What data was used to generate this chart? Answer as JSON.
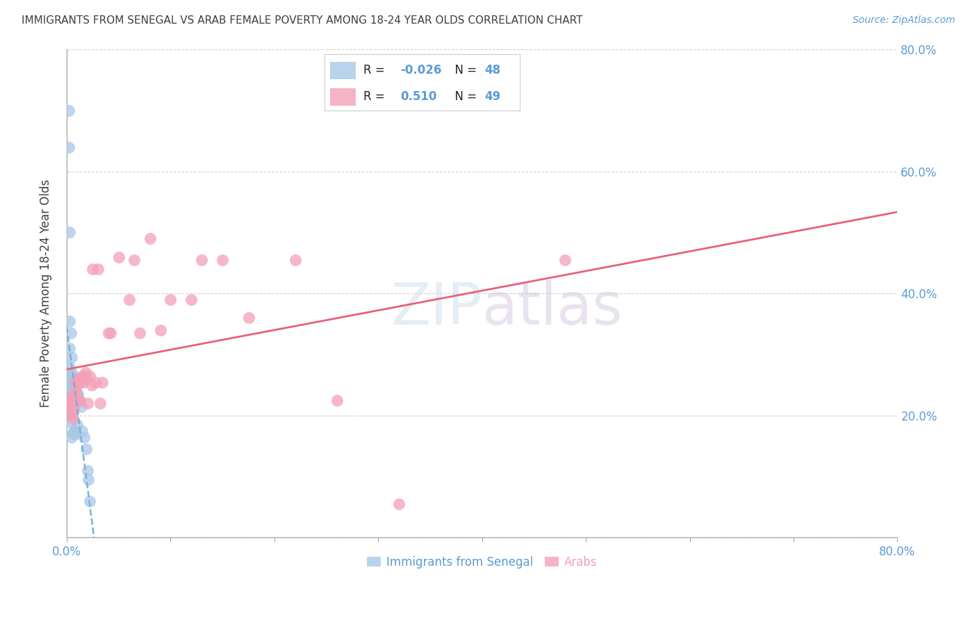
{
  "title": "IMMIGRANTS FROM SENEGAL VS ARAB FEMALE POVERTY AMONG 18-24 YEAR OLDS CORRELATION CHART",
  "source": "Source: ZipAtlas.com",
  "ylabel": "Female Poverty Among 18-24 Year Olds",
  "xlabel_senegal": "Immigrants from Senegal",
  "xlabel_arabs": "Arabs",
  "xlim": [
    0.0,
    0.8
  ],
  "ylim": [
    0.0,
    0.8
  ],
  "legend_r_senegal": "-0.026",
  "legend_n_senegal": "48",
  "legend_r_arabs": "0.510",
  "legend_n_arabs": "49",
  "senegal_color": "#a8c8e8",
  "arabs_color": "#f4a0b8",
  "trendline_senegal_color": "#7ab0d8",
  "trendline_arabs_color": "#e8607a",
  "background_color": "#ffffff",
  "grid_color": "#cccccc",
  "axis_label_color": "#5b9bd5",
  "title_color": "#404040",
  "watermark": "ZIPatlas",
  "senegal_x": [
    0.002,
    0.002,
    0.003,
    0.003,
    0.003,
    0.003,
    0.003,
    0.004,
    0.004,
    0.004,
    0.004,
    0.005,
    0.005,
    0.005,
    0.005,
    0.005,
    0.005,
    0.005,
    0.005,
    0.005,
    0.005,
    0.006,
    0.006,
    0.006,
    0.006,
    0.006,
    0.006,
    0.007,
    0.007,
    0.007,
    0.007,
    0.007,
    0.008,
    0.008,
    0.009,
    0.009,
    0.009,
    0.01,
    0.01,
    0.011,
    0.012,
    0.014,
    0.015,
    0.017,
    0.019,
    0.02,
    0.021,
    0.022
  ],
  "senegal_y": [
    0.7,
    0.64,
    0.5,
    0.355,
    0.31,
    0.28,
    0.24,
    0.335,
    0.26,
    0.23,
    0.19,
    0.295,
    0.27,
    0.26,
    0.25,
    0.24,
    0.23,
    0.22,
    0.215,
    0.205,
    0.165,
    0.265,
    0.25,
    0.235,
    0.225,
    0.21,
    0.17,
    0.25,
    0.235,
    0.225,
    0.215,
    0.175,
    0.235,
    0.175,
    0.235,
    0.22,
    0.17,
    0.235,
    0.185,
    0.235,
    0.225,
    0.215,
    0.175,
    0.165,
    0.145,
    0.11,
    0.095,
    0.06
  ],
  "arabs_x": [
    0.003,
    0.003,
    0.004,
    0.005,
    0.005,
    0.006,
    0.006,
    0.007,
    0.007,
    0.008,
    0.008,
    0.009,
    0.01,
    0.01,
    0.011,
    0.012,
    0.013,
    0.013,
    0.014,
    0.015,
    0.016,
    0.017,
    0.018,
    0.019,
    0.02,
    0.022,
    0.024,
    0.025,
    0.028,
    0.03,
    0.032,
    0.034,
    0.04,
    0.042,
    0.05,
    0.06,
    0.065,
    0.07,
    0.08,
    0.09,
    0.1,
    0.12,
    0.13,
    0.15,
    0.175,
    0.22,
    0.26,
    0.32,
    0.48
  ],
  "arabs_y": [
    0.23,
    0.205,
    0.22,
    0.22,
    0.2,
    0.23,
    0.195,
    0.235,
    0.21,
    0.255,
    0.23,
    0.24,
    0.25,
    0.225,
    0.26,
    0.255,
    0.26,
    0.225,
    0.26,
    0.265,
    0.255,
    0.265,
    0.27,
    0.26,
    0.22,
    0.265,
    0.25,
    0.44,
    0.255,
    0.44,
    0.22,
    0.255,
    0.335,
    0.335,
    0.46,
    0.39,
    0.455,
    0.335,
    0.49,
    0.34,
    0.39,
    0.39,
    0.455,
    0.455,
    0.36,
    0.455,
    0.225,
    0.055,
    0.455
  ]
}
